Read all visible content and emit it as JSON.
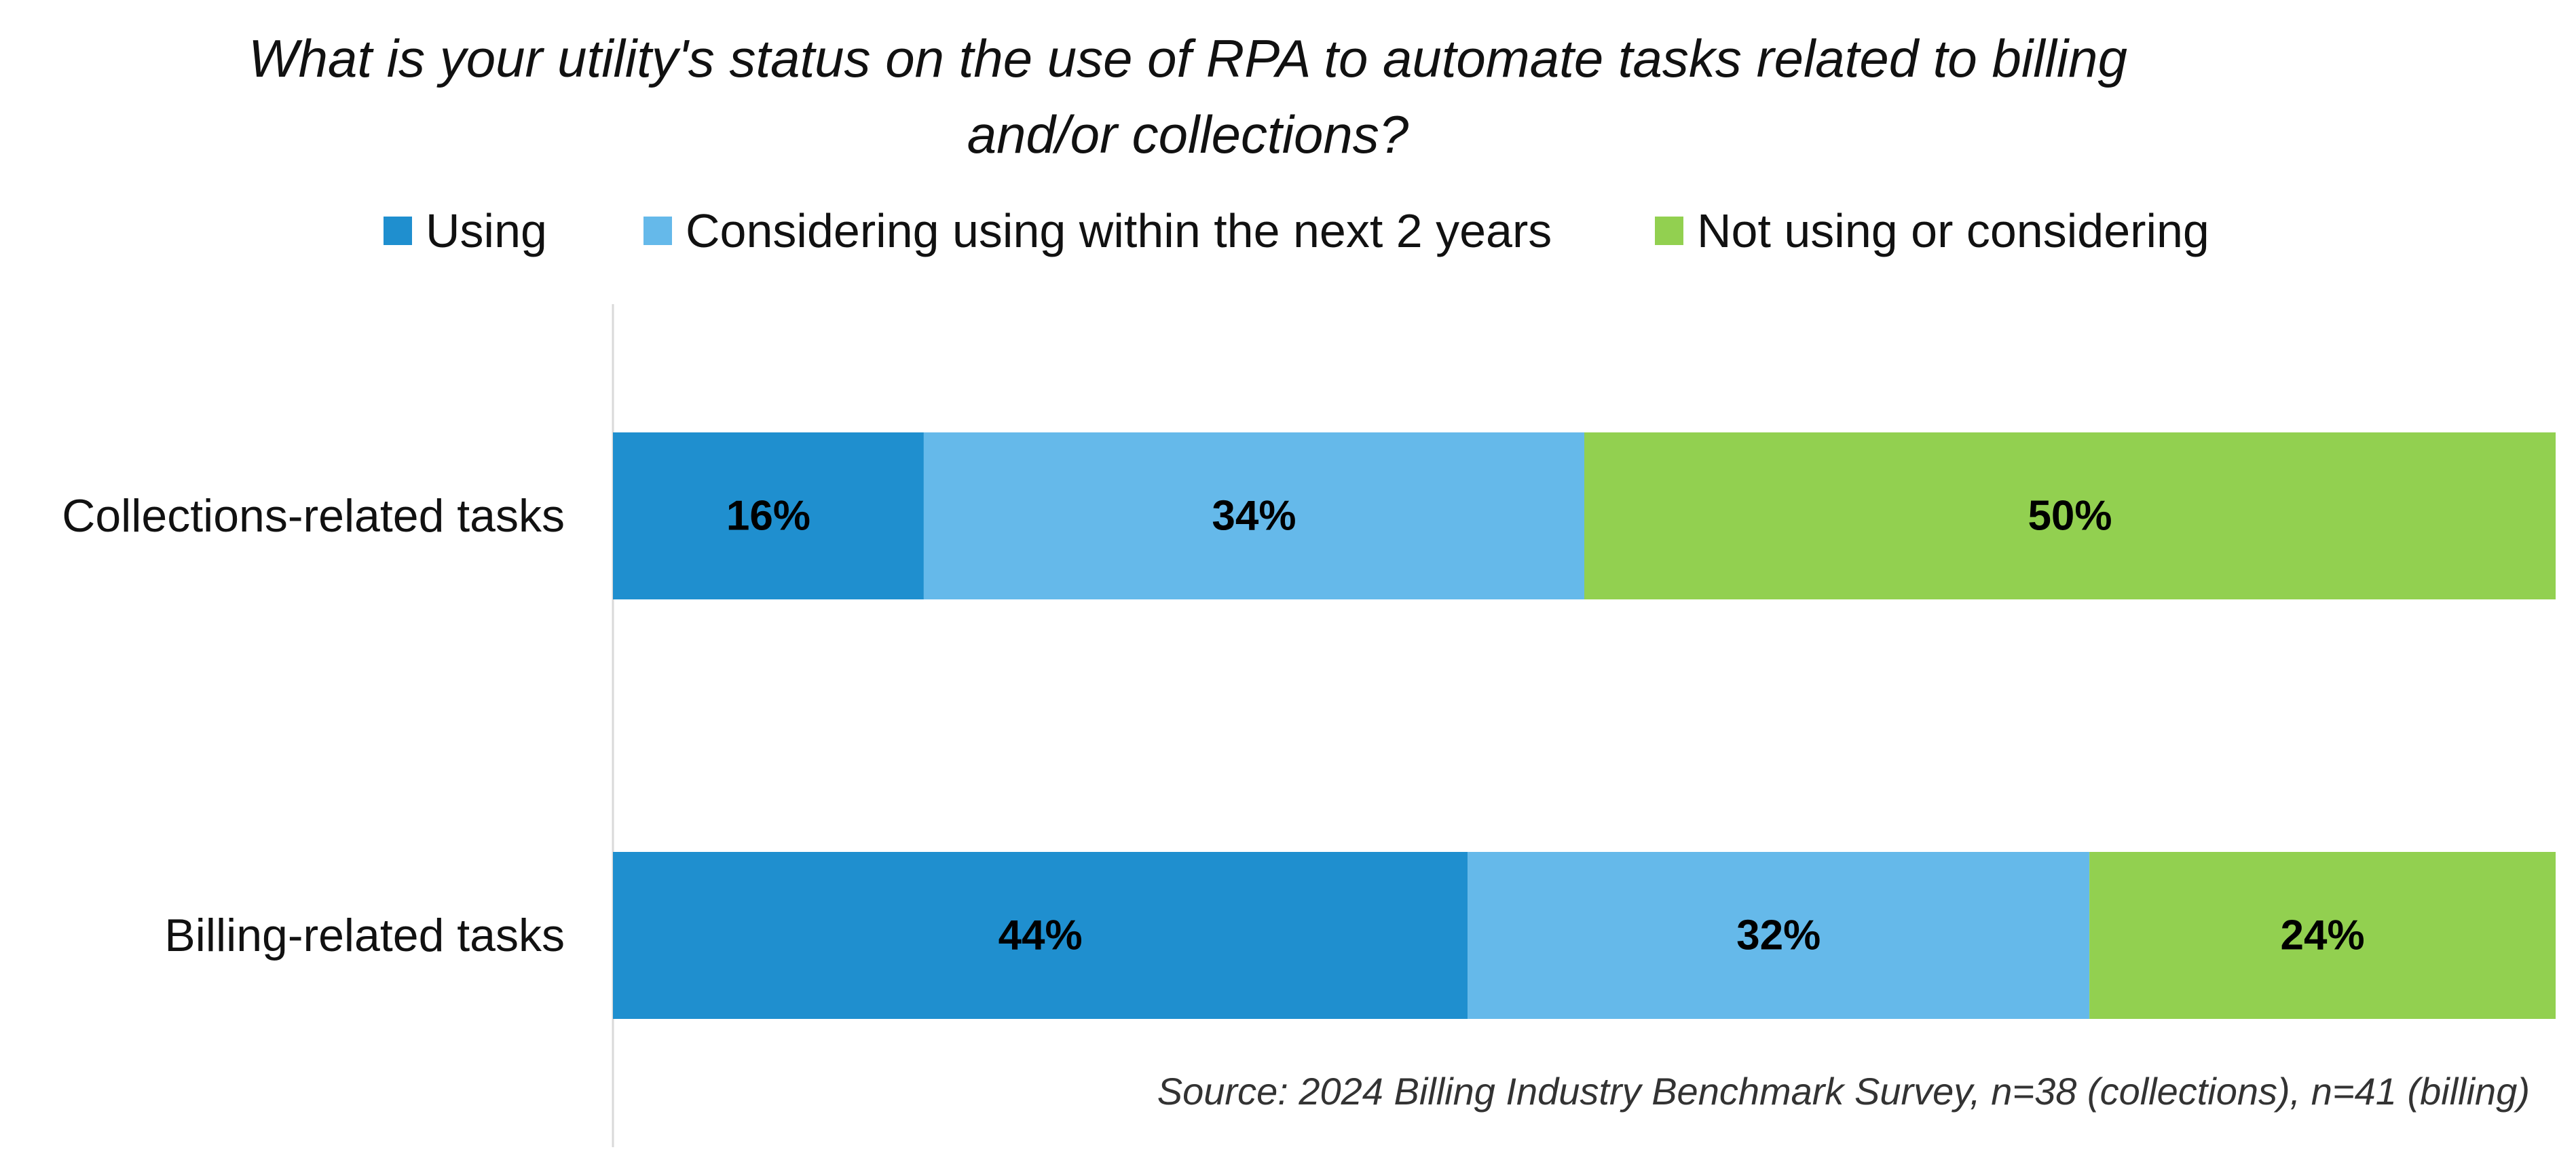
{
  "chart_data": {
    "type": "bar",
    "orientation": "horizontal",
    "stacked": true,
    "title": "What is your utility's status on the use of RPA to automate tasks related to billing and/or collections?",
    "title_lines": [
      "What is your utility's status on the use of RPA to automate tasks related to billing",
      "and/or collections?"
    ],
    "categories": [
      "Collections-related tasks",
      "Billing-related tasks"
    ],
    "series": [
      {
        "name": "Using",
        "color": "#1F8FCF",
        "values": [
          16,
          44
        ],
        "labels": [
          "16%",
          "44%"
        ]
      },
      {
        "name": "Considering using within the next 2 years",
        "color": "#65B9EA",
        "values": [
          34,
          32
        ],
        "labels": [
          "34%",
          "32%"
        ]
      },
      {
        "name": "Not using or considering",
        "color": "#92D050",
        "values": [
          50,
          24
        ],
        "labels": [
          "50%",
          "24%"
        ]
      }
    ],
    "xlim": [
      0,
      100
    ],
    "legend_position": "top",
    "grid": false,
    "source": "Source: 2024 Billing Industry Benchmark Survey, n=38 (collections), n=41 (billing)"
  }
}
